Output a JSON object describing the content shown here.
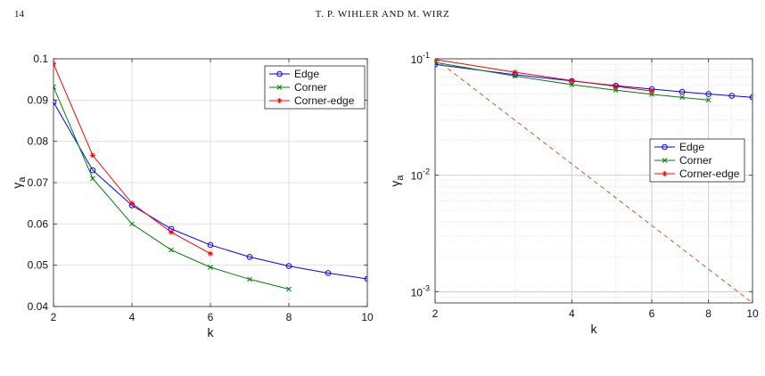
{
  "page": {
    "number": "14",
    "running_head": "T. P. WIHLER AND M. WIRZ"
  },
  "chart_data": [
    {
      "type": "line",
      "x_scale": "linear",
      "y_scale": "linear",
      "xlim": [
        2,
        10
      ],
      "ylim": [
        0.04,
        0.1
      ],
      "xticks": [
        2,
        4,
        6,
        8,
        10
      ],
      "yticks": [
        0.04,
        0.05,
        0.06,
        0.07,
        0.08,
        0.09,
        0.1
      ],
      "xlabel": "k",
      "ylabel": "γ",
      "ylabel_sub": "a",
      "grid": true,
      "legend": "top-right",
      "series": [
        {
          "name": "Edge",
          "color": "#0000ff",
          "marker": "circle",
          "x": [
            2,
            3,
            4,
            5,
            6,
            7,
            8,
            9,
            10
          ],
          "y": [
            0.0895,
            0.073,
            0.0645,
            0.0588,
            0.0549,
            0.052,
            0.0498,
            0.0481,
            0.0467
          ]
        },
        {
          "name": "Corner",
          "color": "#008000",
          "marker": "x",
          "x": [
            2,
            3,
            4,
            5,
            6,
            7,
            8
          ],
          "y": [
            0.0932,
            0.071,
            0.06,
            0.0537,
            0.0495,
            0.0466,
            0.0442
          ]
        },
        {
          "name": "Corner-edge",
          "color": "#ff0000",
          "marker": "star",
          "x": [
            2,
            3,
            4,
            5,
            6
          ],
          "y": [
            0.0988,
            0.0766,
            0.065,
            0.058,
            0.0528
          ]
        }
      ]
    },
    {
      "type": "line",
      "x_scale": "log",
      "y_scale": "log",
      "xlim": [
        2,
        10
      ],
      "ylim": [
        0.0008,
        0.1
      ],
      "xticks": [
        2,
        4,
        6,
        8,
        10
      ],
      "yticks": [
        0.001,
        0.01,
        0.1
      ],
      "ytick_labels": [
        {
          "base": "10",
          "exp": "-3"
        },
        {
          "base": "10",
          "exp": "-2"
        },
        {
          "base": "10",
          "exp": "-1"
        }
      ],
      "xlabel": "k",
      "ylabel": "γ",
      "ylabel_sub": "a",
      "grid": true,
      "legend": "center-right",
      "series": [
        {
          "name": "Edge",
          "color": "#0000ff",
          "marker": "circle",
          "x": [
            2,
            3,
            4,
            5,
            6,
            7,
            8,
            9,
            10
          ],
          "y": [
            0.0895,
            0.073,
            0.0645,
            0.0588,
            0.0549,
            0.052,
            0.0498,
            0.0481,
            0.0467
          ]
        },
        {
          "name": "Corner",
          "color": "#008000",
          "marker": "x",
          "x": [
            2,
            3,
            4,
            5,
            6,
            7,
            8
          ],
          "y": [
            0.0932,
            0.071,
            0.06,
            0.0537,
            0.0495,
            0.0466,
            0.0442
          ]
        },
        {
          "name": "Corner-edge",
          "color": "#ff0000",
          "marker": "star",
          "x": [
            2,
            3,
            4,
            5,
            6
          ],
          "y": [
            0.0988,
            0.0766,
            0.065,
            0.058,
            0.0528
          ]
        },
        {
          "color": "#d95319",
          "dashed": true,
          "marker": "none",
          "x": [
            2,
            10
          ],
          "y": [
            0.1,
            0.0008
          ]
        }
      ]
    }
  ]
}
